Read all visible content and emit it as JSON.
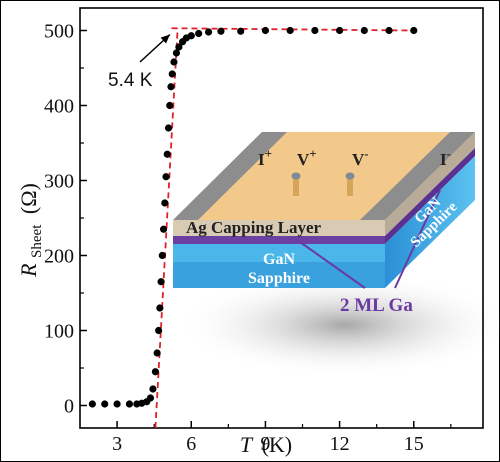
{
  "chart_data": {
    "type": "scatter",
    "xlabel": "T (K)",
    "xlabel_symbol": "T",
    "xlabel_unit": "(K)",
    "ylabel_symbol": "R",
    "ylabel_subscript": "Sheet",
    "ylabel_unit": "(Ω)",
    "xlim": [
      1.5,
      17.8
    ],
    "ylim": [
      -30,
      530
    ],
    "xticks": [
      3,
      6,
      9,
      12,
      15
    ],
    "yticks": [
      0,
      100,
      200,
      300,
      400,
      500
    ],
    "series": [
      {
        "marker": "circle",
        "color": "#000000",
        "points": [
          [
            2.0,
            2
          ],
          [
            2.5,
            2
          ],
          [
            3.0,
            2
          ],
          [
            3.5,
            2
          ],
          [
            3.8,
            2
          ],
          [
            4.0,
            3
          ],
          [
            4.2,
            5
          ],
          [
            4.35,
            10
          ],
          [
            4.45,
            22
          ],
          [
            4.55,
            45
          ],
          [
            4.62,
            70
          ],
          [
            4.68,
            100
          ],
          [
            4.73,
            130
          ],
          [
            4.78,
            165
          ],
          [
            4.83,
            200
          ],
          [
            4.88,
            235
          ],
          [
            4.93,
            270
          ],
          [
            4.98,
            305
          ],
          [
            5.03,
            335
          ],
          [
            5.08,
            370
          ],
          [
            5.13,
            400
          ],
          [
            5.18,
            425
          ],
          [
            5.23,
            442
          ],
          [
            5.3,
            458
          ],
          [
            5.4,
            470
          ],
          [
            5.5,
            478
          ],
          [
            5.65,
            485
          ],
          [
            5.8,
            490
          ],
          [
            6.0,
            493
          ],
          [
            6.3,
            496
          ],
          [
            6.7,
            498
          ],
          [
            7.2,
            499
          ],
          [
            8.0,
            499
          ],
          [
            9.0,
            500
          ],
          [
            10.0,
            500
          ],
          [
            11.0,
            500
          ],
          [
            12.0,
            500
          ],
          [
            13.0,
            500
          ],
          [
            14.0,
            500
          ],
          [
            15.0,
            500
          ]
        ]
      }
    ],
    "fit_lines": [
      {
        "style": "dashed",
        "color": "#e0202a",
        "points": [
          [
            4.55,
            -30
          ],
          [
            5.45,
            503
          ]
        ]
      },
      {
        "style": "dashed",
        "color": "#e0202a",
        "points": [
          [
            5.2,
            503
          ],
          [
            15.0,
            500
          ]
        ]
      }
    ],
    "annotation": {
      "text": "5.4 K",
      "arrow_to": [
        5.3,
        500
      ]
    }
  },
  "inset": {
    "contacts": [
      "I",
      "V",
      "V",
      "I"
    ],
    "contact_signs": [
      "+",
      "+",
      "-",
      "-"
    ],
    "capping_label": "Ag Capping Layer",
    "front_labels": [
      "GaN",
      "Sapphire"
    ],
    "side_labels": [
      "GaN",
      "Sapphire"
    ],
    "interlayer_label": "2 ML Ga",
    "colors": {
      "ag": "#f3c98b",
      "ag_front": "#d8cab3",
      "ga": "#6c3fa3",
      "gan": "#4ab6e9",
      "sapphire": "#1e88cf",
      "side_gan": "#3f9ad4",
      "label_purple": "#6a3aa2"
    }
  }
}
